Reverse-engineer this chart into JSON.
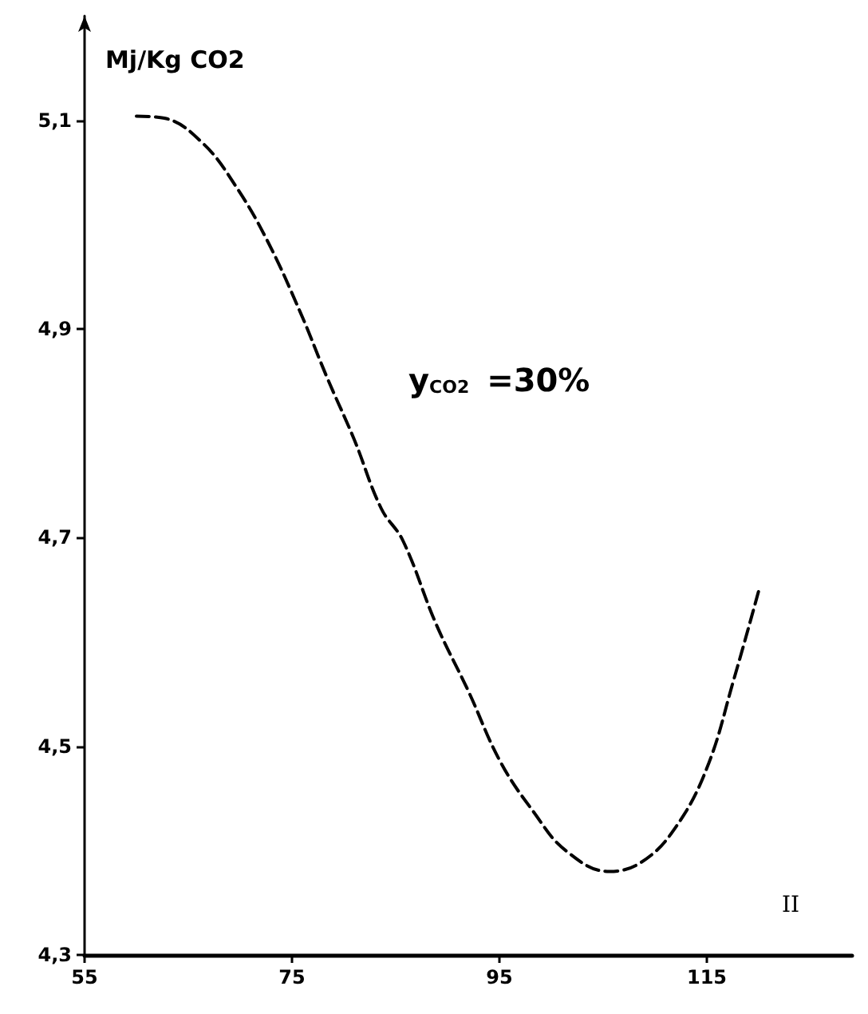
{
  "chart_data": {
    "type": "line",
    "ylabel": "Mj/Kg CO2",
    "x": [
      60.0,
      62.7,
      66.4,
      69.5,
      72.6,
      75.8,
      78.4,
      81.0,
      83.6,
      85.7,
      88.9,
      92.0,
      95.1,
      98.3,
      101.4,
      105.6,
      108.7,
      111.9,
      115.0,
      117.6,
      120.0
    ],
    "series": [
      {
        "color": "#000000",
        "values": [
          5.104,
          5.102,
          5.078,
          5.038,
          4.985,
          4.916,
          4.853,
          4.794,
          4.728,
          4.697,
          4.617,
          4.553,
          4.485,
          4.437,
          4.4,
          4.38,
          4.389,
          4.421,
          4.479,
          4.564,
          4.649
        ]
      }
    ],
    "xlim": [
      55,
      129
    ],
    "xticks": [
      55,
      75,
      95,
      115
    ],
    "ylim": [
      4.3,
      5.2
    ],
    "yticks": [
      {
        "value": 4.3,
        "label": "4,3"
      },
      {
        "value": 4.5,
        "label": "4,5"
      },
      {
        "value": 4.7,
        "label": "4,7"
      },
      {
        "value": 4.9,
        "label": "4,9"
      },
      {
        "value": 5.1,
        "label": "5,1"
      }
    ],
    "annotations": [
      "y$_{CO2}$ =30%",
      "II"
    ],
    "grid": false,
    "marker": "none",
    "line_style": "dashed"
  }
}
